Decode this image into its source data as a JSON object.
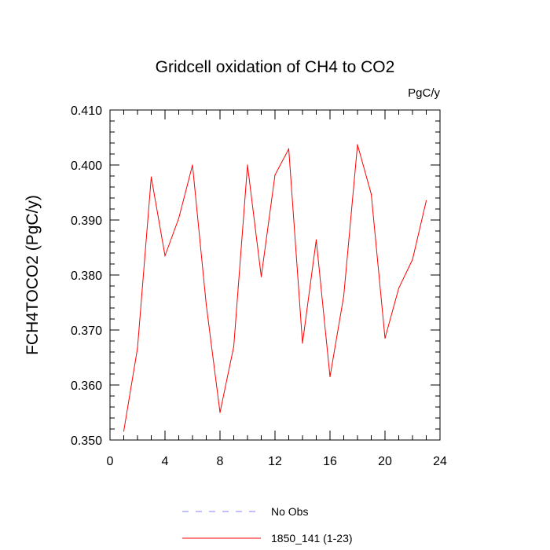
{
  "chart_data": {
    "type": "line",
    "title": "Gridcell oxidation of CH4 to CO2",
    "units": "PgC/y",
    "xlabel": "",
    "ylabel": "FCH4TOCO2  (PgC/y)",
    "xlim": [
      0,
      24
    ],
    "ylim": [
      0.35,
      0.41
    ],
    "xticks": [
      0,
      4,
      8,
      12,
      16,
      20,
      24
    ],
    "xtick_labels": [
      "0",
      "4",
      "8",
      "12",
      "16",
      "20",
      "24"
    ],
    "yticks": [
      0.35,
      0.36,
      0.37,
      0.38,
      0.39,
      0.4,
      0.41
    ],
    "ytick_labels": [
      "0.350",
      "0.360",
      "0.370",
      "0.380",
      "0.390",
      "0.400",
      "0.410"
    ],
    "grid": false,
    "legend_position": "bottom",
    "series": [
      {
        "name": "1850_141 (1-23)",
        "color": "#ff0000",
        "dash": "solid",
        "x": [
          1,
          2,
          3,
          4,
          5,
          6,
          7,
          8,
          9,
          10,
          11,
          12,
          13,
          14,
          15,
          16,
          17,
          18,
          19,
          20,
          21,
          22,
          23
        ],
        "values": [
          0.3516,
          0.3667,
          0.3978,
          0.3835,
          0.3903,
          0.4,
          0.3746,
          0.355,
          0.367,
          0.4,
          0.3797,
          0.3982,
          0.4029,
          0.3676,
          0.3864,
          0.3615,
          0.3762,
          0.4037,
          0.3947,
          0.3685,
          0.3776,
          0.3828,
          0.3935
        ]
      }
    ],
    "legend": [
      {
        "label": "No Obs",
        "color": "#8080ff",
        "dash": "dashed"
      },
      {
        "label": "1850_141 (1-23)",
        "color": "#ff0000",
        "dash": "solid"
      }
    ]
  }
}
